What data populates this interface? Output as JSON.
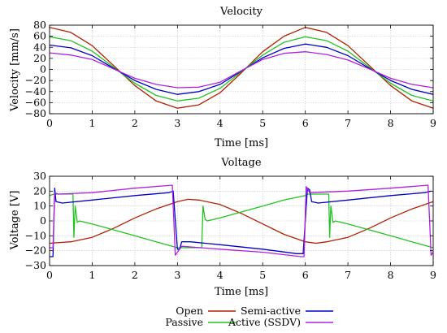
{
  "chart_data": [
    {
      "type": "line",
      "title": "Velocity",
      "xlabel": "Time [ms]",
      "ylabel": "Velocity [mm/s]",
      "xlim": [
        0,
        9
      ],
      "ylim": [
        -80,
        80
      ],
      "xticks": [
        "0",
        "1",
        "2",
        "3",
        "4",
        "5",
        "6",
        "7",
        "8",
        "9"
      ],
      "yticks": [
        "80",
        "60",
        "40",
        "20",
        "0",
        "−20",
        "−40",
        "−60",
        "−80"
      ],
      "ytick_values": [
        80,
        60,
        40,
        20,
        0,
        -20,
        -40,
        -60,
        -80
      ],
      "grid": true,
      "series": [
        {
          "name": "Open",
          "color": "#b22000",
          "x": [
            0,
            0.5,
            1,
            1.5,
            2,
            2.5,
            3,
            3.5,
            4,
            4.5,
            5,
            5.5,
            6,
            6.5,
            7,
            7.5,
            8,
            8.5,
            9
          ],
          "y": [
            76,
            67,
            43,
            7,
            -29,
            -57,
            -70,
            -64,
            -42,
            -6,
            32,
            60,
            76,
            67,
            43,
            7,
            -29,
            -57,
            -70
          ]
        },
        {
          "name": "Passive",
          "color": "#22c322",
          "x": [
            0,
            0.5,
            1,
            1.5,
            2,
            2.5,
            3,
            3.5,
            4,
            4.5,
            5,
            5.5,
            6,
            6.5,
            7,
            7.5,
            8,
            8.5,
            9
          ],
          "y": [
            59,
            52,
            33,
            4,
            -25,
            -47,
            -57,
            -52,
            -34,
            -4,
            26,
            49,
            59,
            52,
            33,
            4,
            -25,
            -47,
            -57
          ]
        },
        {
          "name": "Semi-active",
          "color": "#0000c8",
          "x": [
            0,
            0.5,
            1,
            1.5,
            2,
            2.5,
            3,
            3.5,
            4,
            4.5,
            5,
            5.5,
            6,
            6.5,
            7,
            7.5,
            8,
            8.5,
            9
          ],
          "y": [
            44,
            39,
            25,
            2,
            -20,
            -36,
            -45,
            -40,
            -27,
            -3,
            21,
            38,
            46,
            40,
            25,
            2,
            -20,
            -36,
            -45
          ]
        },
        {
          "name": "Active (SSDV)",
          "color": "#b020e0",
          "x": [
            0,
            0.5,
            1,
            1.5,
            2,
            2.5,
            3,
            3.5,
            4,
            4.5,
            5,
            5.5,
            6,
            6.5,
            7,
            7.5,
            8,
            8.5,
            9
          ],
          "y": [
            30,
            26,
            18,
            1,
            -16,
            -27,
            -33,
            -32,
            -23,
            -2,
            18,
            29,
            32,
            27,
            17,
            1,
            -16,
            -27,
            -33
          ]
        }
      ]
    },
    {
      "type": "line",
      "title": "Voltage",
      "xlabel": "Time [ms]",
      "ylabel": "Voltage [V]",
      "xlim": [
        0,
        9
      ],
      "ylim": [
        -30,
        30
      ],
      "xticks": [
        "0",
        "1",
        "2",
        "3",
        "4",
        "5",
        "6",
        "7",
        "8",
        "9"
      ],
      "yticks": [
        "30",
        "20",
        "10",
        "0",
        "−10",
        "−20",
        "−30"
      ],
      "ytick_values": [
        30,
        20,
        10,
        0,
        -10,
        -20,
        -30
      ],
      "grid": true,
      "series": [
        {
          "name": "Open",
          "color": "#b22000",
          "x": [
            0,
            0.5,
            1,
            1.5,
            2,
            2.5,
            3,
            3.25,
            3.5,
            4,
            4.5,
            5,
            5.5,
            6,
            6.25,
            6.5,
            7,
            7.5,
            8,
            8.5,
            9
          ],
          "y": [
            -15,
            -14,
            -11,
            -5,
            2,
            8,
            13,
            14.5,
            14,
            11,
            5,
            -2,
            -9,
            -14,
            -15,
            -14,
            -11,
            -5,
            2,
            8,
            13
          ]
        },
        {
          "name": "Passive",
          "color": "#22c322",
          "x": [
            0,
            0.1,
            0.55,
            0.57,
            0.6,
            0.65,
            0.7,
            1,
            1.5,
            2,
            2.5,
            3,
            3.05,
            3.55,
            3.57,
            3.6,
            3.65,
            3.7,
            4,
            4.5,
            5,
            5.5,
            6,
            6.05,
            6.55,
            6.57,
            6.6,
            6.65,
            6.7,
            7,
            7.5,
            8,
            8.5,
            9
          ],
          "y": [
            17,
            18,
            18,
            -11,
            10,
            -1,
            0,
            -2,
            -6,
            -10,
            -14,
            -18,
            -18,
            -18,
            -18,
            10,
            1,
            0,
            2,
            6,
            10,
            14,
            17,
            18,
            18,
            -11,
            10,
            -1,
            0,
            -2,
            -6,
            -10,
            -14,
            -18
          ]
        },
        {
          "name": "Semi-active",
          "color": "#0000c8",
          "x": [
            0,
            0.08,
            0.12,
            0.15,
            0.3,
            1,
            2,
            2.8,
            2.9,
            3.0,
            3.05,
            3.1,
            3.3,
            4,
            5,
            5.8,
            5.95,
            6.05,
            6.1,
            6.15,
            6.3,
            7,
            8,
            8.8,
            8.95
          ],
          "y": [
            -24,
            -24,
            22,
            13,
            12,
            14,
            17,
            19,
            20,
            -19,
            -19,
            -14,
            -14,
            -16,
            -19,
            -22,
            -22,
            22,
            21,
            13,
            12,
            14,
            17,
            19,
            20
          ]
        },
        {
          "name": "Active (SSDV)",
          "color": "#b020e0",
          "x": [
            0,
            0.08,
            0.12,
            0.2,
            1,
            2,
            2.88,
            2.95,
            3.0,
            3.1,
            4,
            5,
            5.9,
            5.97,
            6.02,
            6.1,
            7,
            8,
            8.88,
            8.95,
            9
          ],
          "y": [
            -18,
            -18,
            19,
            18,
            19,
            22,
            24,
            -23,
            -21,
            -17,
            -19,
            -21,
            -24,
            -24,
            23,
            19,
            20,
            22,
            24,
            -23,
            -21
          ]
        }
      ]
    }
  ],
  "legend": {
    "placement": "bottom",
    "entries": [
      "Open",
      "Passive",
      "Semi-active",
      "Active (SSDV)"
    ]
  }
}
